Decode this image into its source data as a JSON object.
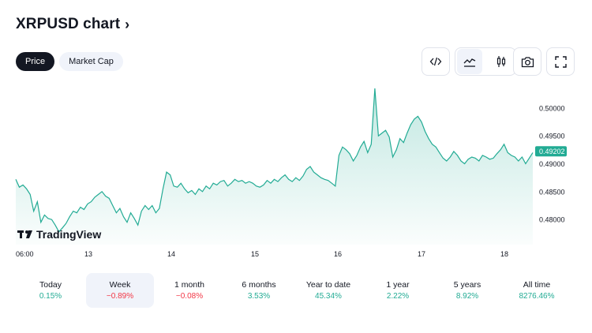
{
  "header": {
    "title": "XRPUSD chart",
    "chevron": "›"
  },
  "tabs": [
    {
      "label": "Price",
      "active": true
    },
    {
      "label": "Market Cap",
      "active": false
    }
  ],
  "toolbar": {
    "icons": [
      "embed-code-icon",
      "area-chart-icon",
      "candlestick-icon",
      "camera-icon",
      "fullscreen-icon"
    ]
  },
  "colors": {
    "accent": "#22ab94",
    "negative": "#f23645",
    "text": "#131722",
    "muted": "#787b86"
  },
  "watermark": {
    "text": "TradingView"
  },
  "chart_data": {
    "type": "area",
    "title": "",
    "xlabel": "",
    "ylabel": "",
    "x_ticks": [
      "06:00",
      "13",
      "14",
      "15",
      "16",
      "17",
      "18"
    ],
    "y_ticks": [
      "0.48000",
      "0.48500",
      "0.49000",
      "0.49500",
      "0.50000"
    ],
    "ylim": [
      0.4755,
      0.5045
    ],
    "last_value": "0.49202",
    "grid": false,
    "series": [
      {
        "values": [
          0.4872,
          0.4858,
          0.4862,
          0.4855,
          0.4845,
          0.4815,
          0.4832,
          0.4795,
          0.4808,
          0.4802,
          0.48,
          0.479,
          0.4778,
          0.4785,
          0.4793,
          0.4805,
          0.4815,
          0.4812,
          0.4822,
          0.4818,
          0.4828,
          0.4832,
          0.484,
          0.4845,
          0.485,
          0.4842,
          0.4838,
          0.4825,
          0.4812,
          0.482,
          0.4805,
          0.4795,
          0.4812,
          0.4802,
          0.479,
          0.4815,
          0.4825,
          0.4818,
          0.4825,
          0.4812,
          0.482,
          0.4855,
          0.4885,
          0.488,
          0.486,
          0.4858,
          0.4865,
          0.4855,
          0.4848,
          0.4852,
          0.4845,
          0.4855,
          0.485,
          0.486,
          0.4855,
          0.4865,
          0.4862,
          0.4868,
          0.487,
          0.486,
          0.4865,
          0.4872,
          0.4868,
          0.487,
          0.4865,
          0.4868,
          0.4865,
          0.486,
          0.4858,
          0.4862,
          0.487,
          0.4865,
          0.4872,
          0.4868,
          0.4875,
          0.488,
          0.4872,
          0.4868,
          0.4875,
          0.487,
          0.4878,
          0.489,
          0.4895,
          0.4885,
          0.488,
          0.4875,
          0.4872,
          0.487,
          0.4865,
          0.486,
          0.4915,
          0.493,
          0.4925,
          0.4918,
          0.4905,
          0.4915,
          0.493,
          0.494,
          0.492,
          0.4935,
          0.5035,
          0.495,
          0.4955,
          0.496,
          0.4948,
          0.4912,
          0.4925,
          0.4945,
          0.4938,
          0.4955,
          0.497,
          0.498,
          0.4985,
          0.4975,
          0.4958,
          0.4945,
          0.4935,
          0.493,
          0.492,
          0.491,
          0.4905,
          0.4912,
          0.4922,
          0.4915,
          0.4905,
          0.49,
          0.4908,
          0.4912,
          0.491,
          0.4905,
          0.4915,
          0.4912,
          0.4908,
          0.491,
          0.4918,
          0.4925,
          0.4935,
          0.492,
          0.4915,
          0.4912,
          0.4905,
          0.4912,
          0.49,
          0.491,
          0.492
        ]
      }
    ]
  },
  "performance": [
    {
      "label": "Today",
      "value": "0.15%",
      "positive": true,
      "active": false
    },
    {
      "label": "Week",
      "value": "−0.89%",
      "positive": false,
      "active": true
    },
    {
      "label": "1 month",
      "value": "−0.08%",
      "positive": false,
      "active": false
    },
    {
      "label": "6 months",
      "value": "3.53%",
      "positive": true,
      "active": false
    },
    {
      "label": "Year to date",
      "value": "45.34%",
      "positive": true,
      "active": false
    },
    {
      "label": "1 year",
      "value": "2.22%",
      "positive": true,
      "active": false
    },
    {
      "label": "5 years",
      "value": "8.92%",
      "positive": true,
      "active": false
    },
    {
      "label": "All time",
      "value": "8276.46%",
      "positive": true,
      "active": false
    }
  ]
}
